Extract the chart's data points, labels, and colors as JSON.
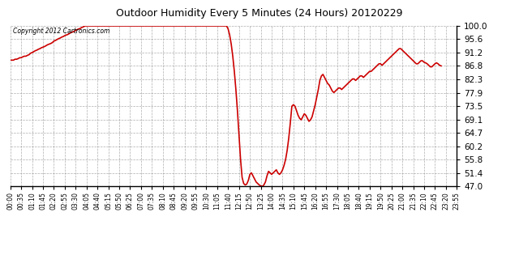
{
  "title": "Outdoor Humidity Every 5 Minutes (24 Hours) 20120229",
  "copyright_text": "Copyright 2012 Cartronics.com",
  "line_color": "#cc0000",
  "bg_color": "#ffffff",
  "plot_bg_color": "#ffffff",
  "grid_color": "#aaaaaa",
  "ylim": [
    47.0,
    100.0
  ],
  "yticks": [
    47.0,
    51.4,
    55.8,
    60.2,
    64.7,
    69.1,
    73.5,
    77.9,
    82.3,
    86.8,
    91.2,
    95.6,
    100.0
  ],
  "x_tick_interval_minutes": 35,
  "x_labels": [
    "00:00",
    "00:35",
    "01:10",
    "01:45",
    "02:20",
    "02:55",
    "03:30",
    "04:05",
    "04:40",
    "05:15",
    "05:50",
    "06:25",
    "07:00",
    "07:35",
    "08:10",
    "08:45",
    "09:20",
    "09:55",
    "10:30",
    "11:05",
    "11:40",
    "12:15",
    "12:50",
    "13:25",
    "14:00",
    "14:35",
    "15:10",
    "15:45",
    "16:20",
    "16:55",
    "17:30",
    "18:05",
    "18:40",
    "19:15",
    "19:50",
    "20:25",
    "21:00",
    "21:35",
    "22:10",
    "22:45",
    "23:20",
    "23:55"
  ],
  "humidity_values": [
    88.7,
    88.7,
    88.7,
    89.0,
    89.0,
    89.2,
    89.5,
    89.5,
    89.8,
    90.0,
    90.0,
    90.3,
    90.5,
    91.0,
    91.2,
    91.5,
    91.8,
    92.0,
    92.3,
    92.5,
    92.8,
    93.0,
    93.2,
    93.5,
    93.8,
    94.0,
    94.2,
    94.5,
    95.0,
    95.2,
    95.5,
    95.8,
    96.0,
    96.3,
    96.5,
    96.8,
    97.0,
    97.2,
    97.5,
    97.8,
    98.0,
    98.2,
    98.5,
    98.8,
    99.0,
    99.2,
    99.5,
    99.7,
    100.0,
    100.0,
    100.0,
    100.0,
    100.0,
    100.0,
    100.0,
    100.0,
    100.0,
    100.0,
    100.0,
    100.0,
    100.0,
    100.0,
    100.0,
    100.0,
    100.0,
    100.0,
    100.0,
    100.0,
    100.0,
    100.0,
    100.0,
    100.0,
    100.0,
    100.0,
    100.0,
    100.0,
    100.0,
    100.0,
    100.0,
    100.0,
    100.0,
    100.0,
    100.0,
    100.0,
    100.0,
    100.0,
    100.0,
    100.0,
    100.0,
    100.0,
    100.0,
    100.0,
    100.0,
    100.0,
    100.0,
    100.0,
    100.0,
    100.0,
    100.0,
    100.0,
    100.0,
    100.0,
    100.0,
    100.0,
    100.0,
    100.0,
    100.0,
    100.0,
    100.0,
    100.0,
    100.0,
    100.0,
    100.0,
    100.0,
    100.0,
    100.0,
    100.0,
    100.0,
    100.0,
    100.0,
    100.0,
    100.0,
    100.0,
    100.0,
    100.0,
    100.0,
    100.0,
    100.0,
    100.0,
    100.0,
    100.0,
    100.0,
    100.0,
    100.0,
    100.0,
    100.0,
    100.0,
    100.0,
    100.0,
    100.0,
    99.0,
    97.0,
    94.0,
    90.0,
    85.0,
    79.0,
    72.0,
    64.0,
    56.0,
    50.0,
    48.0,
    47.5,
    47.8,
    49.0,
    51.0,
    51.5,
    50.5,
    49.5,
    48.5,
    48.0,
    47.5,
    47.2,
    47.0,
    47.5,
    48.5,
    50.5,
    52.0,
    51.5,
    51.0,
    51.5,
    52.0,
    52.5,
    51.5,
    51.0,
    51.5,
    52.5,
    54.0,
    56.0,
    59.0,
    63.0,
    68.0,
    73.5,
    74.0,
    73.5,
    72.0,
    70.5,
    69.5,
    69.0,
    70.0,
    71.0,
    70.5,
    69.5,
    68.5,
    69.0,
    70.0,
    72.0,
    74.0,
    76.5,
    79.0,
    82.0,
    83.5,
    84.0,
    83.0,
    82.0,
    81.0,
    80.5,
    79.5,
    78.5,
    78.0,
    78.5,
    79.0,
    79.5,
    79.5,
    79.0,
    79.5,
    80.0,
    80.5,
    81.0,
    81.5,
    82.0,
    82.5,
    82.5,
    82.0,
    82.5,
    83.0,
    83.5,
    83.5,
    83.0,
    83.5,
    84.0,
    84.5,
    85.0,
    85.0,
    85.5,
    86.0,
    86.5,
    87.0,
    87.5,
    87.5,
    87.0,
    87.5,
    88.0,
    88.5,
    89.0,
    89.5,
    90.0,
    90.5,
    91.0,
    91.5,
    92.0,
    92.5,
    92.5,
    92.0,
    91.5,
    91.0,
    90.5,
    90.0,
    89.5,
    89.0,
    88.5,
    88.0,
    87.5,
    87.5,
    88.0,
    88.5,
    88.5,
    88.0,
    87.8,
    87.5,
    87.0,
    86.5,
    86.5,
    87.0,
    87.5,
    87.8,
    87.5,
    87.0,
    86.8
  ]
}
